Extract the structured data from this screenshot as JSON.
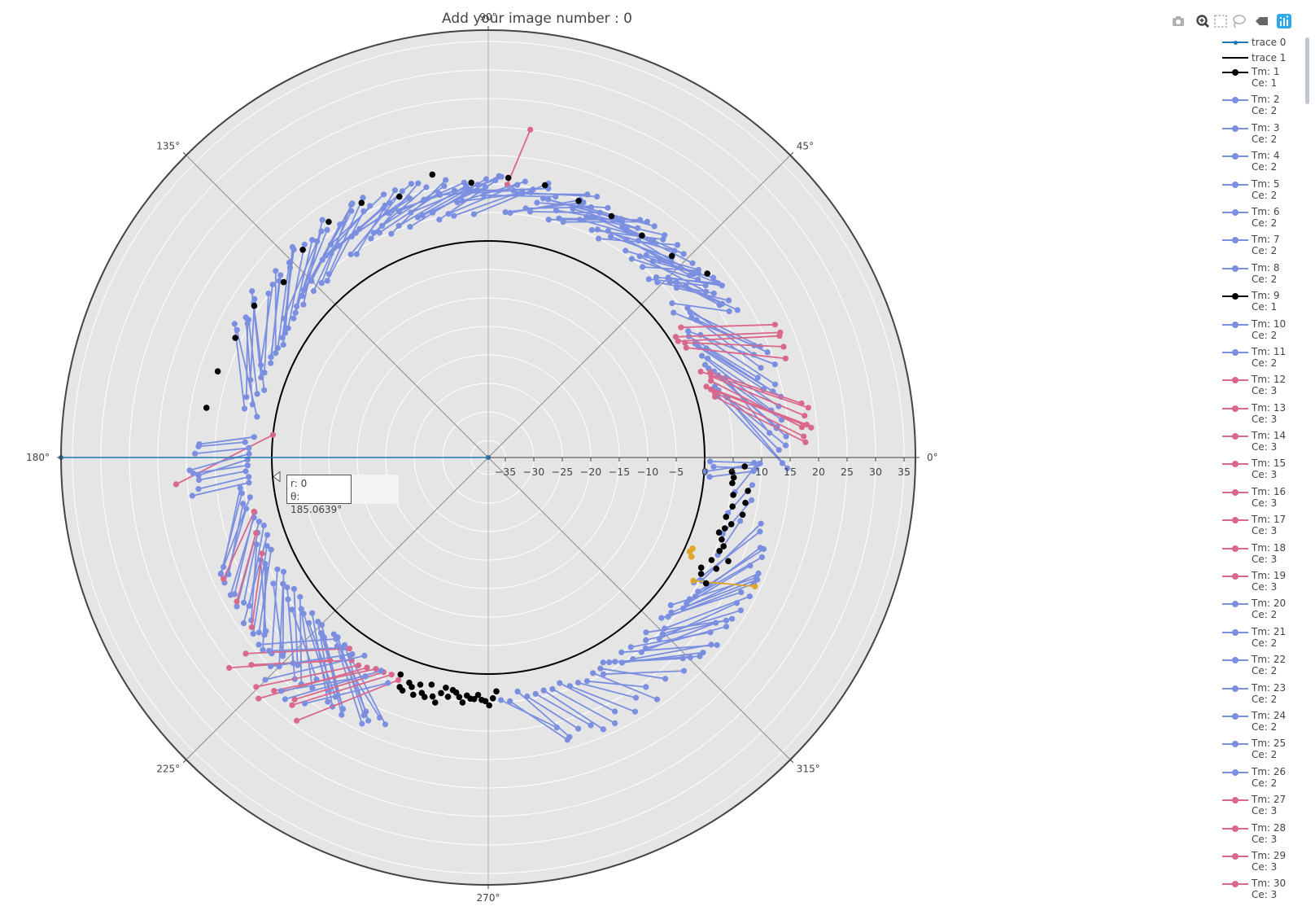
{
  "chart_data": {
    "type": "scatter",
    "subtype": "polar",
    "title": "Add your image number : 0",
    "angular_axis": {
      "direction": "counterclockwise",
      "rotation": 0,
      "tick_labels": [
        "0°",
        "45°",
        "90°",
        "135°",
        "180°",
        "225°",
        "270°",
        "315°"
      ]
    },
    "radial_axis": {
      "range": [
        -38,
        37
      ],
      "tick_values": [
        -35,
        -30,
        -25,
        -20,
        -15,
        -10,
        -5,
        0,
        5,
        10,
        15,
        20,
        25,
        30,
        35
      ],
      "tick_labels": [
        "−35",
        "−30",
        "−25",
        "−20",
        "−15",
        "−10",
        "−5",
        "0",
        "5",
        "10",
        "15",
        "20",
        "25",
        "30",
        "35"
      ]
    },
    "colors": {
      "plot_bg": "#e5e5e5",
      "grid": "#ffffff",
      "axis_line": "#444444",
      "trace0": "#1f77b4",
      "ce1": "#000000",
      "ce2": "#7b8fe0",
      "ce3": "#d9688a",
      "ce4": "#e0a52a"
    },
    "traces": [
      {
        "name": "trace 0",
        "mode": "lines+markers",
        "color": "#1f77b4",
        "r": [
          0,
          37
        ],
        "theta": [
          180,
          180
        ]
      },
      {
        "name": "trace 1",
        "mode": "lines",
        "color": "#000000",
        "r_const": 0,
        "theta_range": [
          0,
          360
        ]
      }
    ],
    "pair_groups": [
      {
        "ce": 2,
        "color": "#7b8fe0",
        "theta_start": 14,
        "theta_end": 38,
        "count": 22,
        "r1_min": 3,
        "r1_max": 6,
        "r2_min": 11,
        "r2_max": 15,
        "dtheta": -15
      },
      {
        "ce": 3,
        "color": "#d9688a",
        "theta_start": 15,
        "theta_end": 22,
        "count": 8,
        "r1_min": 2,
        "r1_max": 4,
        "r2_min": 17,
        "r2_max": 19,
        "dtheta": -12
      },
      {
        "ce": 3,
        "color": "#d9688a",
        "theta_start": 29,
        "theta_end": 34,
        "count": 5,
        "r1_min": 1,
        "r1_max": 3,
        "r2_min": 17,
        "r2_max": 18,
        "dtheta": -10
      },
      {
        "ce": 2,
        "color": "#7b8fe0",
        "theta_start": 40,
        "theta_end": 52,
        "count": 13,
        "r1_min": 4,
        "r1_max": 8,
        "r2_min": 10,
        "r2_max": 13,
        "dtheta": -10
      },
      {
        "ce": 2,
        "color": "#7b8fe0",
        "theta_start": 53,
        "theta_end": 86,
        "count": 30,
        "r1_min": 5,
        "r1_max": 9,
        "r2_min": 9,
        "r2_max": 12,
        "dtheta": -15
      },
      {
        "ce": 3,
        "color": "#d9688a",
        "theta_start": 86,
        "theta_end": 86,
        "count": 1,
        "r1_min": 10,
        "r1_max": 10,
        "r2_min": 20,
        "r2_max": 20,
        "dtheta": -3
      },
      {
        "ce": 2,
        "color": "#7b8fe0",
        "theta_start": 91,
        "theta_end": 130,
        "count": 34,
        "r1_min": 4,
        "r1_max": 9,
        "r2_min": 9,
        "r2_max": 12,
        "dtheta": -15
      },
      {
        "ce": 2,
        "color": "#7b8fe0",
        "theta_start": 131,
        "theta_end": 170,
        "count": 30,
        "r1_min": 3,
        "r1_max": 6,
        "r2_min": 10,
        "r2_max": 13,
        "dtheta": -16
      },
      {
        "ce": 3,
        "color": "#d9688a",
        "theta_start": 174,
        "theta_end": 174,
        "count": 1,
        "r1_min": 0,
        "r1_max": 0,
        "r2_min": 17,
        "r2_max": 17,
        "dtheta": 10
      },
      {
        "ce": 2,
        "color": "#7b8fe0",
        "theta_start": 175,
        "theta_end": 186,
        "count": 9,
        "r1_min": 3,
        "r1_max": 5,
        "r2_min": 12,
        "r2_max": 15,
        "dtheta": 2
      },
      {
        "ce": 2,
        "color": "#7b8fe0",
        "theta_start": 187,
        "theta_end": 235,
        "count": 40,
        "r1_min": 3,
        "r1_max": 6,
        "r2_min": 11,
        "r2_max": 14,
        "dtheta": 14
      },
      {
        "ce": 3,
        "color": "#d9688a",
        "theta_start": 193,
        "theta_end": 203,
        "count": 3,
        "r1_min": 4,
        "r1_max": 6,
        "r2_min": 12,
        "r2_max": 14,
        "dtheta": 12
      },
      {
        "ce": 3,
        "color": "#d9688a",
        "theta_start": 232,
        "theta_end": 248,
        "count": 9,
        "r1_min": 3,
        "r1_max": 8,
        "r2_min": 16,
        "r2_max": 22,
        "dtheta": -14
      },
      {
        "ce": 2,
        "color": "#7b8fe0",
        "theta_start": 230,
        "theta_end": 246,
        "count": 7,
        "r1_min": 3,
        "r1_max": 7,
        "r2_min": 11,
        "r2_max": 18,
        "dtheta": -12
      },
      {
        "ce": 2,
        "color": "#7b8fe0",
        "theta_start": 273,
        "theta_end": 298,
        "count": 13,
        "r1_min": 3,
        "r1_max": 5,
        "r2_min": 10,
        "r2_max": 14,
        "dtheta": 10
      },
      {
        "ce": 2,
        "color": "#7b8fe0",
        "theta_start": 298,
        "theta_end": 330,
        "count": 26,
        "r1_min": 3,
        "r1_max": 6,
        "r2_min": 11,
        "r2_max": 14,
        "dtheta": 15
      },
      {
        "ce": 4,
        "color": "#e0a52a",
        "theta_start": 329,
        "theta_end": 329,
        "count": 1,
        "r1_min": 4,
        "r1_max": 4,
        "r2_min": 14,
        "r2_max": 14,
        "dtheta": 4
      },
      {
        "ce": 2,
        "color": "#7b8fe0",
        "theta_start": 337,
        "theta_end": 352,
        "count": 4,
        "r1_min": 4,
        "r1_max": 6,
        "r2_min": 7,
        "r2_max": 10,
        "dtheta": 8
      },
      {
        "ce": 2,
        "color": "#7b8fe0",
        "theta_start": 355,
        "theta_end": 359,
        "count": 4,
        "r1_min": 0,
        "r1_max": 2,
        "r2_min": 8,
        "r2_max": 10,
        "dtheta": 1
      }
    ],
    "singles": [
      {
        "ce": 1,
        "color": "#000000",
        "theta_start": 248,
        "theta_end": 272,
        "count": 28,
        "r_min": 3,
        "r_max": 6
      },
      {
        "ce": 1,
        "color": "#000000",
        "theta_start": 330,
        "theta_end": 358,
        "count": 22,
        "r_min": 4,
        "r_max": 8
      },
      {
        "ce": 1,
        "color": "#000000",
        "theta_start": 40,
        "theta_end": 170,
        "count": 18,
        "r_min": 9,
        "r_max": 13
      },
      {
        "ce": 4,
        "color": "#e0a52a",
        "theta_start": 334,
        "theta_end": 336,
        "count": 3,
        "r_min": 1,
        "r_max": 2
      }
    ],
    "hover": {
      "r_label": "r: 0",
      "theta_label": "θ: 185.0639°",
      "theta": 185.0639,
      "r": 0
    }
  },
  "legend": {
    "items": [
      {
        "name": "trace 0",
        "line1": "trace 0",
        "line2": "",
        "color": "#1f77b4",
        "marker": true,
        "thin": true
      },
      {
        "name": "trace 1",
        "line1": "trace 1",
        "line2": "",
        "color": "#000000",
        "marker": false,
        "thin": false
      },
      {
        "line1": "Tm: 1",
        "line2": "Ce: 1",
        "color": "#000000",
        "marker": true
      },
      {
        "line1": "Tm: 2",
        "line2": "Ce: 2",
        "color": "#7b8fe0",
        "marker": true
      },
      {
        "line1": "Tm: 3",
        "line2": "Ce: 2",
        "color": "#7b8fe0",
        "marker": true
      },
      {
        "line1": "Tm: 4",
        "line2": "Ce: 2",
        "color": "#7b8fe0",
        "marker": true
      },
      {
        "line1": "Tm: 5",
        "line2": "Ce: 2",
        "color": "#7b8fe0",
        "marker": true
      },
      {
        "line1": "Tm: 6",
        "line2": "Ce: 2",
        "color": "#7b8fe0",
        "marker": true
      },
      {
        "line1": "Tm: 7",
        "line2": "Ce: 2",
        "color": "#7b8fe0",
        "marker": true
      },
      {
        "line1": "Tm: 8",
        "line2": "Ce: 2",
        "color": "#7b8fe0",
        "marker": true
      },
      {
        "line1": "Tm: 9",
        "line2": "Ce: 1",
        "color": "#000000",
        "marker": true
      },
      {
        "line1": "Tm: 10",
        "line2": "Ce: 2",
        "color": "#7b8fe0",
        "marker": true
      },
      {
        "line1": "Tm: 11",
        "line2": "Ce: 2",
        "color": "#7b8fe0",
        "marker": true
      },
      {
        "line1": "Tm: 12",
        "line2": "Ce: 3",
        "color": "#d9688a",
        "marker": true
      },
      {
        "line1": "Tm: 13",
        "line2": "Ce: 3",
        "color": "#d9688a",
        "marker": true
      },
      {
        "line1": "Tm: 14",
        "line2": "Ce: 3",
        "color": "#d9688a",
        "marker": true
      },
      {
        "line1": "Tm: 15",
        "line2": "Ce: 3",
        "color": "#d9688a",
        "marker": true
      },
      {
        "line1": "Tm: 16",
        "line2": "Ce: 3",
        "color": "#d9688a",
        "marker": true
      },
      {
        "line1": "Tm: 17",
        "line2": "Ce: 3",
        "color": "#d9688a",
        "marker": true
      },
      {
        "line1": "Tm: 18",
        "line2": "Ce: 3",
        "color": "#d9688a",
        "marker": true
      },
      {
        "line1": "Tm: 19",
        "line2": "Ce: 3",
        "color": "#d9688a",
        "marker": true
      },
      {
        "line1": "Tm: 20",
        "line2": "Ce: 2",
        "color": "#7b8fe0",
        "marker": true
      },
      {
        "line1": "Tm: 21",
        "line2": "Ce: 2",
        "color": "#7b8fe0",
        "marker": true
      },
      {
        "line1": "Tm: 22",
        "line2": "Ce: 2",
        "color": "#7b8fe0",
        "marker": true
      },
      {
        "line1": "Tm: 23",
        "line2": "Ce: 2",
        "color": "#7b8fe0",
        "marker": true
      },
      {
        "line1": "Tm: 24",
        "line2": "Ce: 2",
        "color": "#7b8fe0",
        "marker": true
      },
      {
        "line1": "Tm: 25",
        "line2": "Ce: 2",
        "color": "#7b8fe0",
        "marker": true
      },
      {
        "line1": "Tm: 26",
        "line2": "Ce: 2",
        "color": "#7b8fe0",
        "marker": true
      },
      {
        "line1": "Tm: 27",
        "line2": "Ce: 3",
        "color": "#d9688a",
        "marker": true
      },
      {
        "line1": "Tm: 28",
        "line2": "Ce: 3",
        "color": "#d9688a",
        "marker": true
      },
      {
        "line1": "Tm: 29",
        "line2": "Ce: 3",
        "color": "#d9688a",
        "marker": true
      },
      {
        "line1": "Tm: 30",
        "line2": "Ce: 3",
        "color": "#d9688a",
        "marker": true
      }
    ]
  },
  "modebar": {
    "buttons": [
      {
        "icon": "camera-icon",
        "title": "Download plot as a png"
      },
      {
        "icon": "zoom-icon",
        "title": "Zoom"
      },
      {
        "icon": "box-select-icon",
        "title": "Box Select"
      },
      {
        "icon": "lasso-select-icon",
        "title": "Lasso Select"
      },
      {
        "icon": "eraser-icon",
        "title": "Reset"
      },
      {
        "icon": "plotly-logo-icon",
        "title": "Produced with Plotly"
      }
    ]
  }
}
